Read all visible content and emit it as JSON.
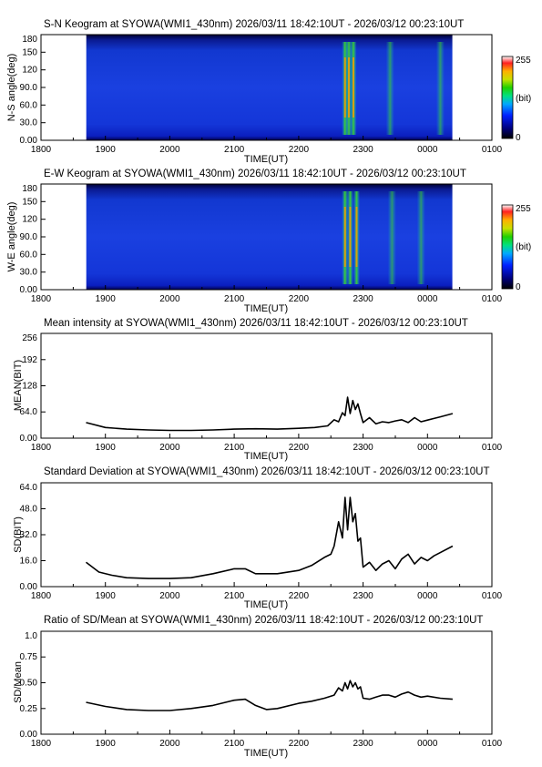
{
  "chart_data": [
    {
      "type": "heatmap",
      "title": "S-N Keogram at SYOWA(WMI1_430nm)    2026/03/11 18:42:10UT - 2026/03/12 00:23:10UT",
      "xlabel": "TIME(UT)",
      "ylabel": "N-S angle(deg)",
      "x_ticks": [
        "1800",
        "1900",
        "2000",
        "2100",
        "2200",
        "2300",
        "0000",
        "0100"
      ],
      "y_ticks": [
        "0.00",
        "30.0",
        "60.0",
        "90.0",
        "120",
        "150",
        "180"
      ],
      "ylim": [
        0,
        180
      ],
      "xlim_hours": [
        18,
        25
      ],
      "data_range_hours": [
        18.703,
        24.386
      ],
      "colorbar": {
        "min": "0",
        "max": "255",
        "unit": "(bit)"
      },
      "arc_bands_hours": [
        22.72,
        22.78,
        22.85,
        23.42,
        24.2
      ]
    },
    {
      "type": "heatmap",
      "title": "E-W Keogram at SYOWA(WMI1_430nm)    2026/03/11 18:42:10UT - 2026/03/12 00:23:10UT",
      "xlabel": "TIME(UT)",
      "ylabel": "W-E angle(deg)",
      "x_ticks": [
        "1800",
        "1900",
        "2000",
        "2100",
        "2200",
        "2300",
        "0000",
        "0100"
      ],
      "y_ticks": [
        "0.00",
        "30.0",
        "60.0",
        "90.0",
        "120",
        "150",
        "180"
      ],
      "ylim": [
        0,
        180
      ],
      "xlim_hours": [
        18,
        25
      ],
      "data_range_hours": [
        18.703,
        24.386
      ],
      "colorbar": {
        "min": "0",
        "max": "255",
        "unit": "(bit)"
      },
      "arc_bands_hours": [
        22.72,
        22.8,
        22.9,
        23.45,
        23.9
      ]
    },
    {
      "type": "line",
      "title": "Mean intensity at SYOWA(WMI1_430nm)    2026/03/11 18:42:10UT - 2026/03/12 00:23:10UT",
      "xlabel": "TIME(UT)",
      "ylabel": "MEAN(BIT)",
      "x_ticks": [
        "1800",
        "1900",
        "2000",
        "2100",
        "2200",
        "2300",
        "0000",
        "0100"
      ],
      "y_ticks": [
        "0.00",
        "64.0",
        "128",
        "192",
        "256"
      ],
      "ylim": [
        0,
        256
      ],
      "xlim_hours": [
        18,
        25
      ],
      "x": [
        18.7,
        19.0,
        19.33,
        19.67,
        20.0,
        20.33,
        20.67,
        21.0,
        21.33,
        21.67,
        22.0,
        22.25,
        22.45,
        22.55,
        22.62,
        22.68,
        22.72,
        22.76,
        22.8,
        22.84,
        22.88,
        22.92,
        22.96,
        23.0,
        23.1,
        23.2,
        23.3,
        23.4,
        23.5,
        23.6,
        23.7,
        23.8,
        23.9,
        24.0,
        24.1,
        24.2,
        24.39
      ],
      "values": [
        38,
        26,
        22,
        20,
        19,
        19,
        20,
        22,
        23,
        22,
        24,
        26,
        30,
        45,
        40,
        62,
        55,
        100,
        60,
        92,
        70,
        84,
        60,
        38,
        50,
        35,
        40,
        38,
        42,
        45,
        38,
        50,
        40,
        44,
        48,
        52,
        60
      ]
    },
    {
      "type": "line",
      "title": "Standard Deviation at SYOWA(WMI1_430nm)    2026/03/11 18:42:10UT - 2026/03/12 00:23:10UT",
      "xlabel": "TIME(UT)",
      "ylabel": "SD(BIT)",
      "x_ticks": [
        "1800",
        "1900",
        "2000",
        "2100",
        "2200",
        "2300",
        "0000",
        "0100"
      ],
      "y_ticks": [
        "0.00",
        "16.0",
        "32.0",
        "48.0",
        "64.0"
      ],
      "ylim": [
        0,
        64
      ],
      "xlim_hours": [
        18,
        25
      ],
      "x": [
        18.7,
        18.9,
        19.1,
        19.33,
        19.67,
        20.0,
        20.33,
        20.67,
        21.0,
        21.17,
        21.33,
        21.67,
        22.0,
        22.2,
        22.4,
        22.5,
        22.55,
        22.62,
        22.68,
        22.72,
        22.76,
        22.8,
        22.84,
        22.88,
        22.92,
        22.96,
        23.0,
        23.1,
        23.2,
        23.3,
        23.4,
        23.5,
        23.6,
        23.7,
        23.8,
        23.9,
        24.0,
        24.1,
        24.2,
        24.39
      ],
      "values": [
        15,
        9,
        7,
        5.5,
        5,
        5,
        5.5,
        8,
        11,
        11,
        8,
        8,
        10,
        13,
        18,
        20,
        25,
        40,
        30,
        55,
        35,
        55,
        40,
        45,
        28,
        30,
        12,
        15,
        10,
        14,
        16,
        11,
        17,
        20,
        14,
        18,
        16,
        19,
        21,
        25
      ]
    },
    {
      "type": "line",
      "title": "Ratio of SD/Mean at SYOWA(WMI1_430nm)    2026/03/11 18:42:10UT - 2026/03/12 00:23:10UT",
      "xlabel": "TIME(UT)",
      "ylabel": "SD/Mean",
      "x_ticks": [
        "1800",
        "1900",
        "2000",
        "2100",
        "2200",
        "2300",
        "0000",
        "0100"
      ],
      "y_ticks": [
        "0.00",
        "0.25",
        "0.50",
        "0.75",
        "1.0"
      ],
      "ylim": [
        0,
        1
      ],
      "xlim_hours": [
        18,
        25
      ],
      "x": [
        18.7,
        19.0,
        19.33,
        19.67,
        20.0,
        20.33,
        20.67,
        21.0,
        21.17,
        21.33,
        21.5,
        21.67,
        22.0,
        22.2,
        22.4,
        22.55,
        22.62,
        22.68,
        22.72,
        22.76,
        22.8,
        22.84,
        22.88,
        22.92,
        22.96,
        23.0,
        23.1,
        23.2,
        23.3,
        23.4,
        23.5,
        23.6,
        23.7,
        23.8,
        23.9,
        24.0,
        24.2,
        24.39
      ],
      "values": [
        0.31,
        0.27,
        0.24,
        0.23,
        0.23,
        0.25,
        0.28,
        0.33,
        0.34,
        0.28,
        0.24,
        0.25,
        0.3,
        0.32,
        0.35,
        0.38,
        0.45,
        0.42,
        0.5,
        0.44,
        0.52,
        0.46,
        0.5,
        0.44,
        0.46,
        0.35,
        0.34,
        0.36,
        0.38,
        0.38,
        0.36,
        0.39,
        0.41,
        0.38,
        0.36,
        0.37,
        0.35,
        0.34
      ]
    }
  ]
}
